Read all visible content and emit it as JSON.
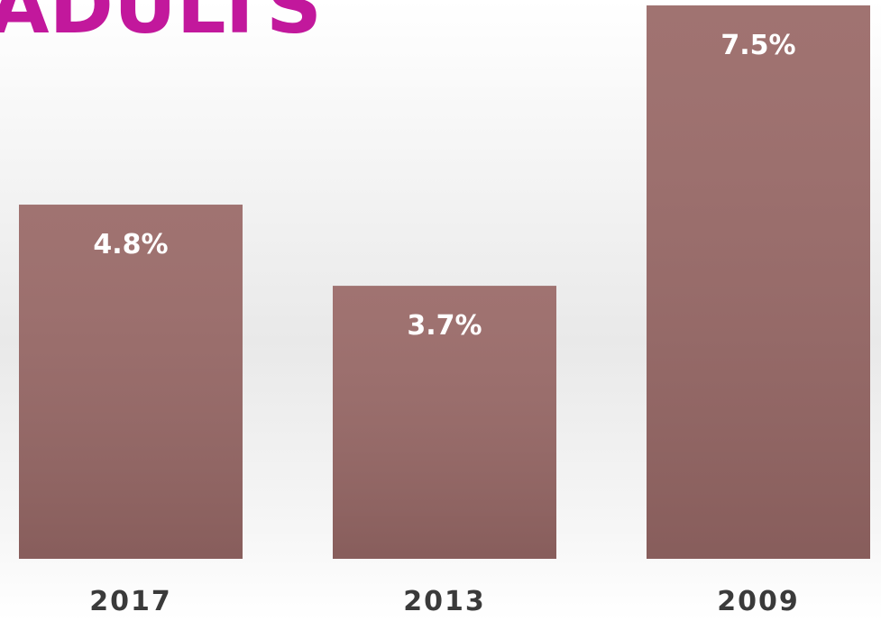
{
  "chart_data": {
    "type": "bar",
    "title": "ADULTS",
    "categories": [
      "2017",
      "2013",
      "2009"
    ],
    "values": [
      4.8,
      3.7,
      7.5
    ],
    "value_labels": [
      "4.8%",
      "3.7%",
      "7.5%"
    ],
    "color": "#9a6a68"
  }
}
